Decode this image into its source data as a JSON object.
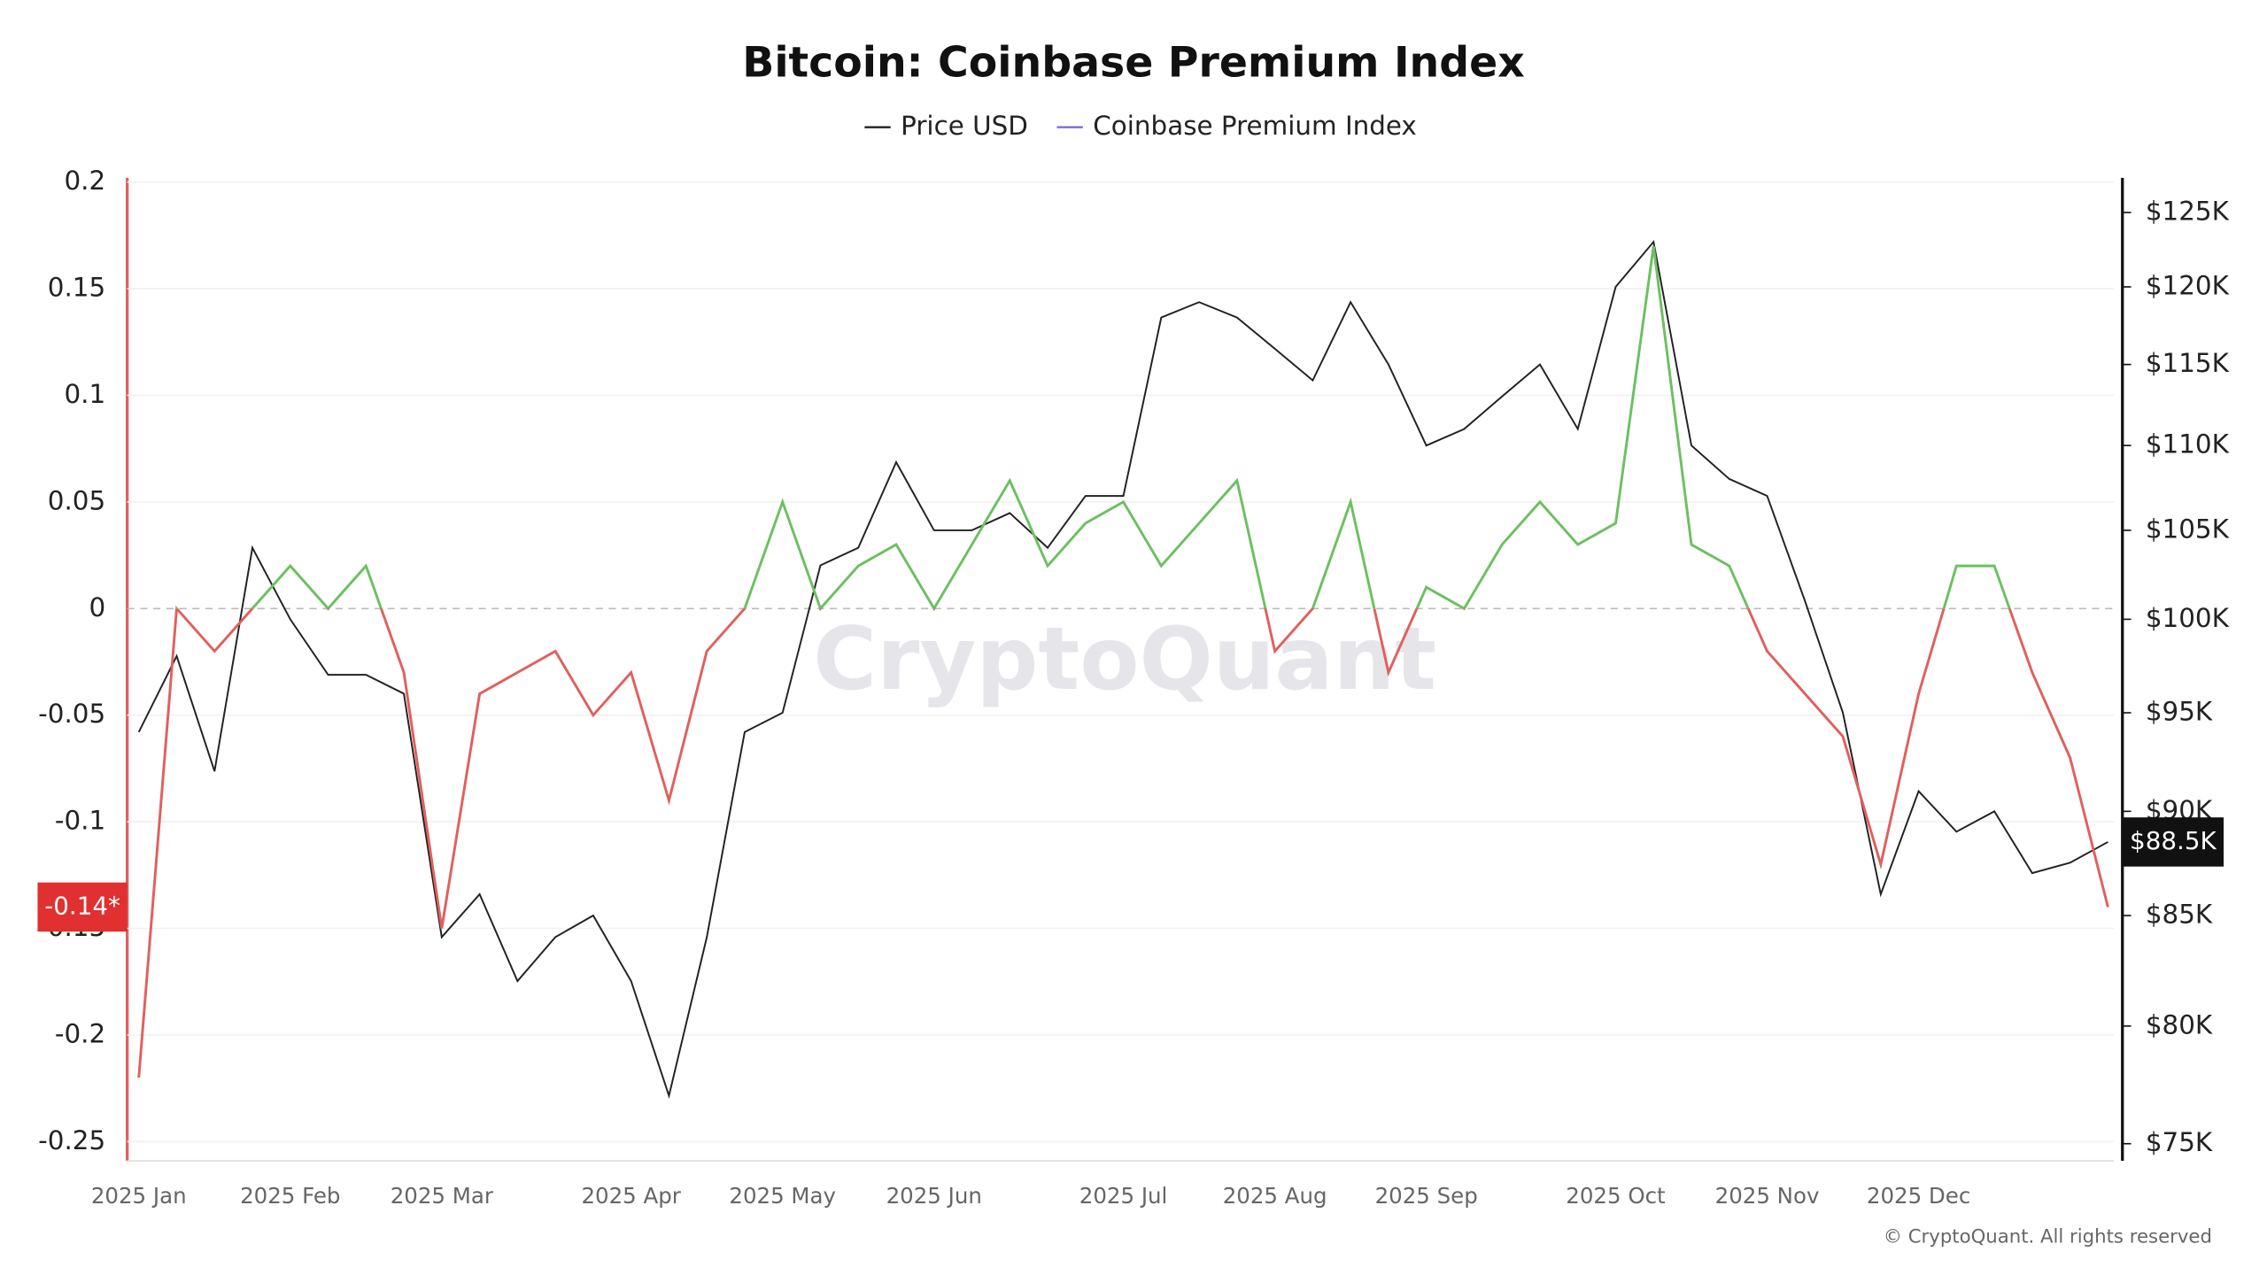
{
  "chart_data": {
    "type": "line",
    "title": "Bitcoin: Coinbase Premium Index",
    "watermark": "CryptoQuant",
    "footer": "© CryptoQuant. All rights reserved",
    "categories": [
      "2025 Jan",
      null,
      null,
      null,
      "2025 Feb",
      null,
      null,
      null,
      "2025 Mar",
      null,
      null,
      null,
      null,
      "2025 Apr",
      null,
      null,
      null,
      "2025 May",
      null,
      null,
      null,
      "2025 Jun",
      null,
      null,
      null,
      null,
      "2025 Jul",
      null,
      null,
      null,
      "2025 Aug",
      null,
      null,
      null,
      "2025 Sep",
      null,
      null,
      null,
      null,
      "2025 Oct",
      null,
      null,
      null,
      "2025 Nov",
      null,
      null,
      null,
      "2025 Dec",
      null,
      null,
      null,
      null,
      null
    ],
    "series": [
      {
        "name": "Price USD",
        "color": "#222222",
        "axis": "y2",
        "values": [
          94000,
          98000,
          92000,
          104000,
          100000,
          97000,
          97000,
          96000,
          84000,
          86000,
          82000,
          84000,
          85000,
          82000,
          77000,
          84000,
          94000,
          95000,
          103000,
          104000,
          109000,
          105000,
          105000,
          106000,
          104000,
          107000,
          107000,
          118000,
          119000,
          118000,
          116000,
          114000,
          119000,
          115000,
          110000,
          111000,
          113000,
          115000,
          111000,
          120000,
          123000,
          110000,
          108000,
          107000,
          101000,
          95000,
          86000,
          91000,
          89000,
          90000,
          87000,
          87500,
          88500
        ]
      },
      {
        "name": "Coinbase Premium Index",
        "color": "#7b6fd6",
        "positive_color": "#6cc060",
        "negative_color": "#e0605e",
        "values": [
          -0.22,
          0.0,
          -0.02,
          0.0,
          0.02,
          0.0,
          0.02,
          -0.03,
          -0.15,
          -0.04,
          -0.03,
          -0.02,
          -0.05,
          -0.03,
          -0.09,
          -0.02,
          0.0,
          0.05,
          0.0,
          0.02,
          0.03,
          0.0,
          0.03,
          0.06,
          0.02,
          0.04,
          0.05,
          0.02,
          0.04,
          0.06,
          -0.02,
          0.0,
          0.05,
          -0.03,
          0.01,
          0.0,
          0.03,
          0.05,
          0.03,
          0.04,
          0.17,
          0.03,
          0.02,
          -0.02,
          -0.04,
          -0.06,
          -0.12,
          -0.04,
          0.02,
          0.02,
          -0.03,
          -0.07,
          -0.14
        ]
      }
    ],
    "annotations": [
      "-0.14*",
      "$88.5K"
    ],
    "ylim": [
      -0.259,
      0.202
    ],
    "yticks": [
      -0.25,
      -0.2,
      -0.15,
      -0.1,
      -0.05,
      0,
      0.05,
      0.1,
      0.15,
      0.2
    ],
    "y2lim": [
      74300,
      127400
    ],
    "y2log": true,
    "y2ticks": [
      {
        "value": 75000,
        "label": "$75K"
      },
      {
        "value": 80000,
        "label": "$80K"
      },
      {
        "value": 85000,
        "label": "$85K"
      },
      {
        "value": 90000,
        "label": "$90K"
      },
      {
        "value": 95000,
        "label": "$95K"
      },
      {
        "value": 100000,
        "label": "$100K"
      },
      {
        "value": 105000,
        "label": "$105K"
      },
      {
        "value": 110000,
        "label": "$110K"
      },
      {
        "value": 115000,
        "label": "$115K"
      },
      {
        "value": 120000,
        "label": "$120K"
      },
      {
        "value": 125000,
        "label": "$125K"
      }
    ],
    "grid": true,
    "legend": "top"
  }
}
